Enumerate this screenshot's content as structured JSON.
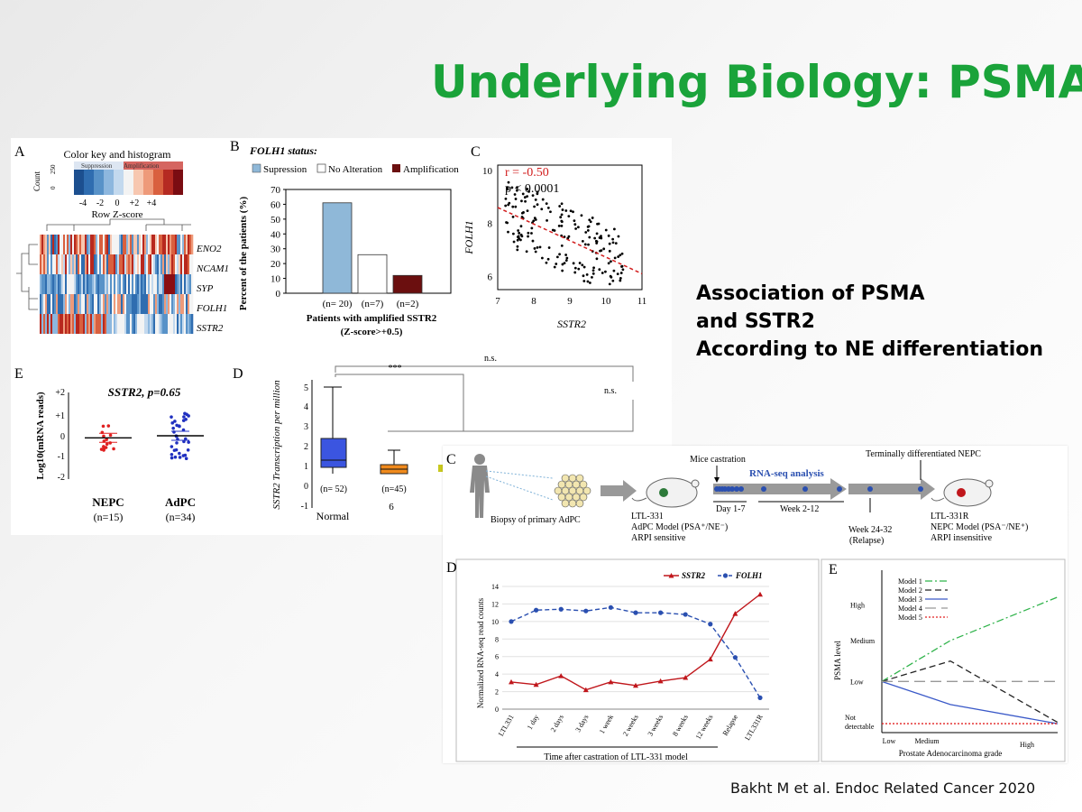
{
  "slide": {
    "title": "Underlying Biology: PSMA",
    "side_text": [
      "Association of PSMA",
      "and SSTR2",
      "According to NE differentiation"
    ],
    "citation": "Bakht M et al. Endoc Related Cancer 2020"
  },
  "panel_a": {
    "letter": "A",
    "key_title": "Color key and histogram",
    "key_ylabel": "Count",
    "key_yticks": [
      "0",
      "250"
    ],
    "key_suppression": "Suppression",
    "key_amplification": "Amplification",
    "key_ticks": [
      "-4",
      "-2",
      "0",
      "+2",
      "+4"
    ],
    "key_xlabel": "Row Z-score",
    "genes": [
      "ENO2",
      "NCAM1",
      "SYP",
      "FOLH1",
      "SSTR2"
    ]
  },
  "panel_b": {
    "letter": "B",
    "heading": "FOLH1 status:",
    "legend": [
      "Supression",
      "No Alteration",
      "Amplification"
    ],
    "colors": [
      "#8fb8d8",
      "#ffffff",
      "#6b0f0f"
    ],
    "chart_data": {
      "type": "bar",
      "categories": [
        "(n= 20)",
        "(n=7)",
        "(n=2)"
      ],
      "values": [
        61,
        26,
        12
      ],
      "ylabel": "Percent of the patients (%)",
      "xlabel": "Patients with amplified SSTR2",
      "xlabel2": "(Z-score>+0.5)",
      "ylim": [
        0,
        70
      ],
      "yticks": [
        "0",
        "10",
        "20",
        "30",
        "40",
        "50",
        "60",
        "70"
      ]
    }
  },
  "panel_c": {
    "letter": "C",
    "r_text": "r = -0.50",
    "p_text": "p < 0.0001",
    "chart_data": {
      "type": "scatter",
      "xlabel": "SSTR2",
      "ylabel": "FOLH1",
      "xlim": [
        7,
        11
      ],
      "ylim": [
        5.5,
        10.2
      ],
      "xticks": [
        "7",
        "8",
        "9",
        "10",
        "11"
      ],
      "yticks": [
        "6",
        "8",
        "10"
      ],
      "trend": [
        [
          7,
          8.6
        ],
        [
          11,
          6.1
        ]
      ]
    }
  },
  "panel_e": {
    "letter": "E",
    "title": "SSTR2, p=0.65",
    "ylabel": "Log10(mRNA reads)",
    "yticks": [
      "+2",
      "+1",
      "0",
      "-1",
      "-2"
    ],
    "groups": [
      {
        "name": "NEPC",
        "n": "(n=15)",
        "color": "#e02020",
        "mean": -0.1
      },
      {
        "name": "AdPC",
        "n": "(n=34)",
        "color": "#2030c0",
        "mean": 0.0
      }
    ]
  },
  "panel_d_top": {
    "letter": "D",
    "ylabel": "SSTR2 Transcription per million",
    "yticks": [
      "5",
      "4",
      "3",
      "2",
      "1",
      "0",
      "-1"
    ],
    "groups": [
      {
        "label": "(n= 52)",
        "color": "#3b55e0"
      },
      {
        "label": "(n=45)",
        "color": "#f08a1c"
      }
    ],
    "xlabels": [
      "Normal",
      "6"
    ],
    "sig_labels": [
      "n.s.",
      "***",
      "n.s."
    ]
  },
  "panel_c2": {
    "letter": "C",
    "biopsy": "Biopsy of primary AdPC",
    "mice_castration": "Mice castration",
    "rna_seq": "RNA-seq analysis",
    "day": "Day 1-7",
    "week_212": "Week 2-12",
    "terminal": "Terminally differentiated NEPC",
    "week_2432": "Week 24-32",
    "relapse": "(Relapse)",
    "ltl331": [
      "LTL-331",
      "AdPC Model (PSA⁺/NE⁻)",
      "ARPI sensitive"
    ],
    "ltl331r": [
      "LTL-331R",
      "NEPC Model (PSA⁻/NE⁺)",
      "ARPI insensitive"
    ]
  },
  "panel_d2": {
    "letter": "D",
    "chart_data": {
      "type": "line",
      "categories": [
        "LTL331",
        "1 day",
        "2 days",
        "3 days",
        "1 week",
        "2 weeks",
        "3 weeks",
        "8 weeks",
        "12 weeks",
        "Relapse",
        "LTL331R"
      ],
      "series": [
        {
          "name": "SSTR2",
          "color": "#c0171c",
          "values": [
            3.1,
            2.8,
            3.8,
            2.2,
            3.1,
            2.7,
            3.2,
            3.6,
            5.7,
            10.9,
            13.1
          ]
        },
        {
          "name": "FOLH1",
          "color": "#2a4fb0",
          "values": [
            10.0,
            11.3,
            11.4,
            11.2,
            11.6,
            11.0,
            11.0,
            10.8,
            9.7,
            5.9,
            1.3
          ]
        }
      ],
      "ylabel": "Normalized RNA-seq read counts",
      "xlabel": "Time after castration of LTL-331 model",
      "ylim": [
        0,
        14
      ],
      "yticks": [
        "0",
        "2",
        "4",
        "6",
        "8",
        "10",
        "12",
        "14"
      ]
    }
  },
  "panel_e2": {
    "letter": "E",
    "chart_data": {
      "type": "line",
      "categories": [
        "Low",
        "Medium",
        "High"
      ],
      "series": [
        {
          "name": "Model 1",
          "color": "#2fb34a",
          "dash": "8,3,2,3",
          "values": [
            2,
            3.6,
            5.3
          ]
        },
        {
          "name": "Model 2",
          "color": "#222222",
          "dash": "7,4",
          "values": [
            2,
            2.8,
            0.4
          ]
        },
        {
          "name": "Model 3",
          "color": "#3a59c8",
          "dash": "",
          "values": [
            2,
            1.1,
            0.35
          ]
        },
        {
          "name": "Model 4",
          "color": "#999999",
          "dash": "12,6",
          "values": [
            2,
            2,
            2
          ]
        },
        {
          "name": "Model 5",
          "color": "#e02020",
          "dash": "2,2",
          "values": [
            0.35,
            0.35,
            0.35
          ]
        }
      ],
      "ylabel": "PSMA level",
      "xlabel": "Prostate Adenocarcinoma grade",
      "ylevels": [
        "Not detectable",
        "Low",
        "Medium",
        "High"
      ]
    }
  }
}
